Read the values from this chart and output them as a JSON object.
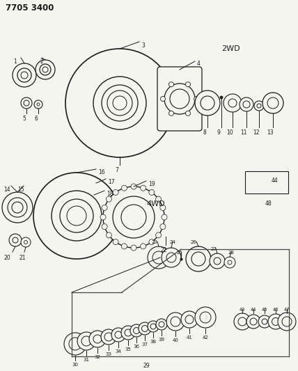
{
  "title": "7705 3400",
  "bg_color": "#f5f5f0",
  "fig_width": 4.28,
  "fig_height": 5.33,
  "dpi": 100,
  "label_2wd": "2WD",
  "label_4wd": "4WD"
}
